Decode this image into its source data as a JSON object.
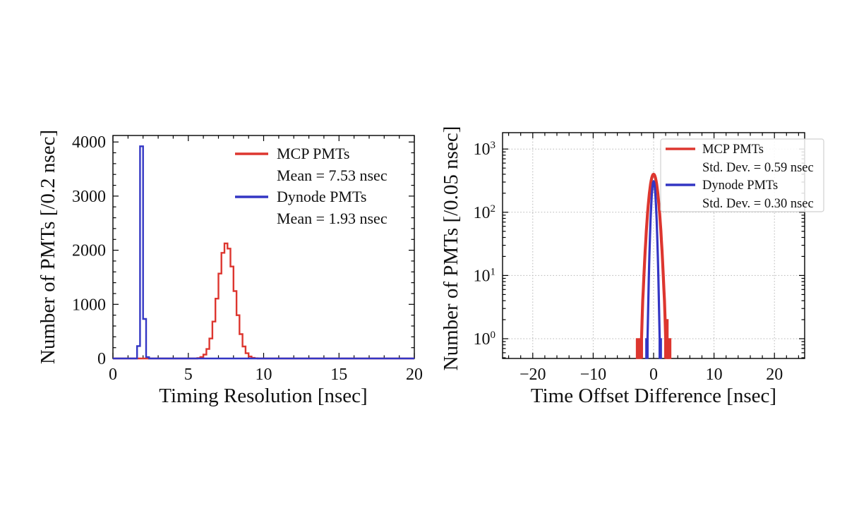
{
  "figure": {
    "background": "#ffffff"
  },
  "colors": {
    "mcp_red": "#dd362f",
    "dynode_blue": "#3336c4",
    "grid": "#b8b8b8",
    "spine": "#000000",
    "text": "#111111",
    "legend_border": "#d0d0d0",
    "legend_fill": "#ffffff"
  },
  "chart_data": [
    {
      "id": "timing-resolution-histogram",
      "type": "bar",
      "subtype": "step-histogram",
      "title": "",
      "xlabel": "Timing Resolution [nsec]",
      "ylabel": "Number of PMTs [/0.2 nsec]",
      "xlim": [
        0,
        20
      ],
      "ylim": [
        0,
        4120
      ],
      "yscale": "linear",
      "grid": false,
      "x_major_ticks": [
        0,
        5,
        10,
        15,
        20
      ],
      "x_tick_labels": [
        "0",
        "5",
        "10",
        "15",
        "20"
      ],
      "x_minor_step": 1,
      "y_major_ticks": [
        0,
        1000,
        2000,
        3000,
        4000
      ],
      "y_tick_labels": [
        "0",
        "1000",
        "2000",
        "3000",
        "4000"
      ],
      "y_minor_step": 200,
      "legend": {
        "frame": false,
        "position": "upper right",
        "entries": [
          {
            "label": "MCP PMTs",
            "stat": "Mean = 7.53 nsec",
            "color_key": "mcp_red"
          },
          {
            "label": "Dynode PMTs",
            "stat": "Mean = 1.93 nsec",
            "color_key": "dynode_blue"
          }
        ]
      },
      "series": [
        {
          "name": "MCP PMTs",
          "color_key": "mcp_red",
          "bin_start": 5.6,
          "bin_width": 0.2,
          "counts": [
            8,
            26,
            72,
            175,
            369,
            682,
            1105,
            1569,
            1952,
            2127,
            2030,
            1699,
            1245,
            799,
            450,
            221,
            96,
            36,
            12,
            4
          ]
        },
        {
          "name": "Dynode PMTs",
          "color_key": "dynode_blue",
          "bin_start": 1.6,
          "bin_width": 0.2,
          "counts": [
            230,
            3920,
            730,
            25
          ]
        }
      ]
    },
    {
      "id": "time-offset-difference-histogram",
      "type": "bar",
      "subtype": "step-histogram-log",
      "title": "",
      "xlabel": "Time Offset Difference [nsec]",
      "ylabel": "Number of PMTs [/0.05 nsec]",
      "xlim": [
        -25,
        25
      ],
      "ylim_log": [
        0.49,
        1800
      ],
      "yscale": "log",
      "grid": true,
      "bin_width": 0.05,
      "x_major_ticks": [
        -20,
        -10,
        0,
        10,
        20
      ],
      "x_tick_labels": [
        "−20",
        "−10",
        "0",
        "10",
        "20"
      ],
      "x_minor_step": 2,
      "y_major_ticks": [
        1,
        10,
        100,
        1000
      ],
      "y_tick_exponents": [
        "0",
        "1",
        "2",
        "3"
      ],
      "legend": {
        "frame": true,
        "position": "upper right",
        "entries": [
          {
            "label": "MCP PMTs",
            "stat": "Std. Dev. = 0.59 nsec",
            "color_key": "mcp_red"
          },
          {
            "label": "Dynode PMTs",
            "stat": "Std. Dev. = 0.30 nsec",
            "color_key": "dynode_blue"
          }
        ]
      },
      "series": [
        {
          "name": "MCP PMTs",
          "color_key": "mcp_red",
          "peak_count": 400,
          "sigma_nsec": 0.59,
          "envelope_x_start": -2.0,
          "envelope_x_step": 0.1,
          "envelope_counts": [
            1,
            2,
            4,
            6,
            10,
            16,
            24,
            35,
            51,
            70,
            95,
            125,
            160,
            198,
            238,
            279,
            318,
            351,
            378,
            394,
            400,
            394,
            378,
            351,
            318,
            279,
            238,
            198,
            160,
            125,
            95,
            70,
            51,
            35,
            24,
            16,
            10,
            6,
            4,
            2,
            1
          ],
          "outlier_bars": [
            {
              "from": -2.85,
              "to": -2.05,
              "count": 1
            },
            {
              "from": 2.0,
              "to": 2.4,
              "count": 2
            },
            {
              "from": 2.4,
              "to": 2.85,
              "count": 1
            }
          ]
        },
        {
          "name": "Dynode PMTs",
          "color_key": "dynode_blue",
          "peak_count": 310,
          "sigma_nsec": 0.3,
          "envelope_x_start": -1.0,
          "envelope_x_step": 0.1,
          "envelope_counts": [
            1,
            3,
            9,
            20,
            42,
            77,
            127,
            188,
            248,
            293,
            310,
            293,
            248,
            188,
            127,
            77,
            42,
            20,
            9,
            3,
            1
          ],
          "outlier_bars": [
            {
              "from": -1.3,
              "to": -0.98,
              "count": 1
            },
            {
              "from": 0.98,
              "to": 1.3,
              "count": 1
            }
          ]
        }
      ]
    }
  ]
}
